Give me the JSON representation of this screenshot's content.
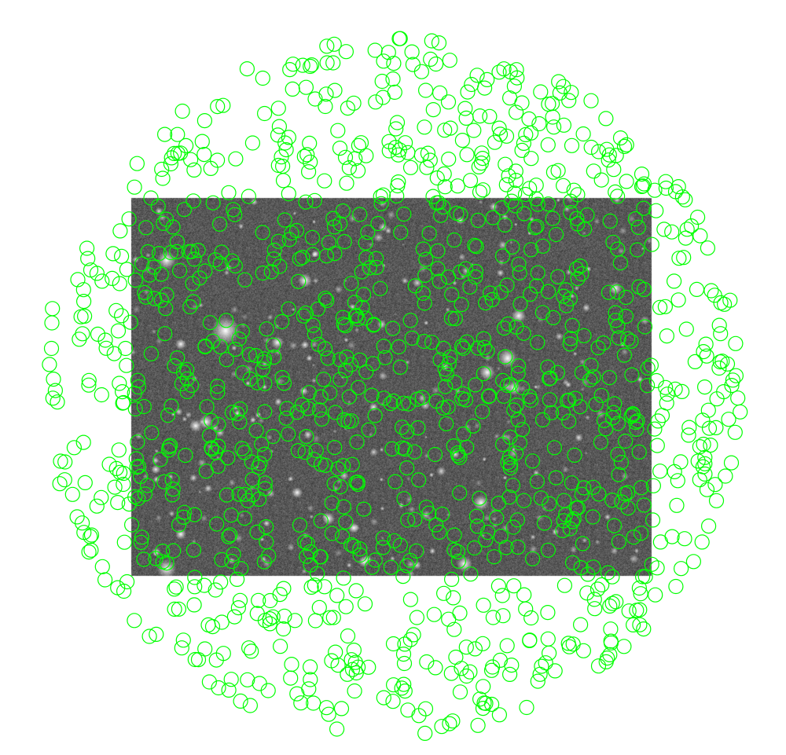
{
  "image": {
    "kind": "star-field",
    "background_color": "#ffffff",
    "frame_color": "#5a5a5a"
  },
  "overlay": {
    "marker_shape": "circle",
    "marker_color": "#00ff00",
    "marker_icon": "circle-marker-icon",
    "estimated_marker_count": 1200
  }
}
